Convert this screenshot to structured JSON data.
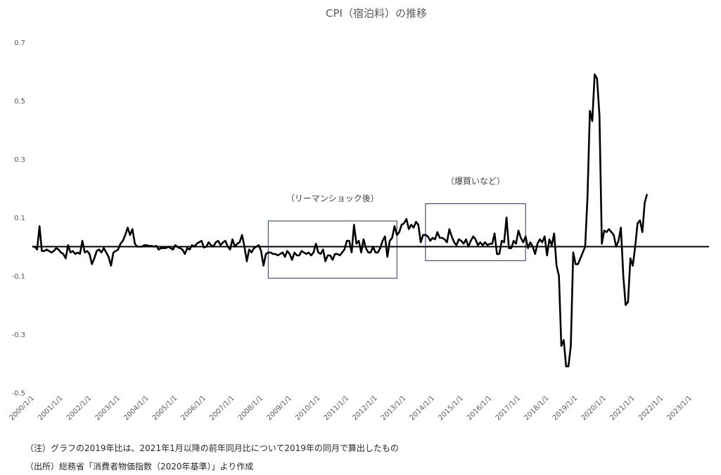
{
  "chart_data": {
    "type": "line",
    "title": "CPI（宿泊料）の推移",
    "xlabel": "",
    "ylabel": "",
    "ylim": [
      -0.5,
      0.7
    ],
    "yticks": [
      -0.5,
      -0.3,
      -0.1,
      0.1,
      0.3,
      0.5,
      0.7
    ],
    "xticks": [
      "2000/1/1",
      "2001/1/1",
      "2002/1/1",
      "2003/1/1",
      "2004/1/1",
      "2005/1/1",
      "2006/1/1",
      "2007/1/1",
      "2008/1/1",
      "2009/1/1",
      "2010/1/1",
      "2011/1/1",
      "2012/1/1",
      "2013/1/1",
      "2014/1/1",
      "2015/1/1",
      "2016/1/1",
      "2017/1/1",
      "2018/1/1",
      "2019/1/1",
      "2020/1/1",
      "2021/1/1",
      "2022/1/1",
      "2023/1/1"
    ],
    "xlim": [
      "2000/1/1",
      "2023/9/1"
    ],
    "grid": false,
    "baseline": 0,
    "series": [
      {
        "x_start": "2000/1/1",
        "frequency": "monthly",
        "values": [
          0.0,
          0.0,
          -0.01,
          0.07,
          -0.015,
          -0.015,
          -0.01,
          -0.015,
          -0.02,
          -0.015,
          -0.005,
          -0.01,
          -0.02,
          -0.025,
          -0.04,
          0.005,
          -0.02,
          -0.015,
          -0.025,
          -0.02,
          -0.025,
          0.02,
          -0.02,
          -0.015,
          -0.025,
          -0.06,
          -0.04,
          -0.015,
          -0.01,
          -0.02,
          -0.005,
          -0.02,
          -0.035,
          -0.065,
          -0.02,
          -0.015,
          -0.01,
          0.01,
          0.02,
          0.04,
          0.065,
          0.04,
          0.06,
          0.01,
          0.0,
          0.0,
          0.0,
          0.005,
          0.005,
          0.002,
          0.003,
          0.0,
          0.003,
          -0.01,
          -0.005,
          -0.005,
          -0.005,
          0.0,
          -0.005,
          -0.01,
          0.005,
          -0.002,
          -0.005,
          -0.01,
          -0.025,
          -0.005,
          -0.01,
          0.005,
          0.0,
          0.01,
          0.015,
          0.02,
          -0.003,
          0.0,
          0.015,
          0.005,
          0.0,
          0.015,
          0.02,
          0.005,
          0.015,
          0.02,
          0.0,
          -0.01,
          0.025,
          0.0,
          0.01,
          0.015,
          0.04,
          0.0,
          -0.05,
          -0.01,
          -0.02,
          -0.005,
          0.0,
          0.005,
          -0.015,
          -0.065,
          -0.025,
          -0.02,
          -0.02,
          -0.025,
          -0.025,
          -0.03,
          -0.025,
          -0.02,
          -0.035,
          -0.015,
          -0.025,
          -0.045,
          -0.02,
          -0.03,
          -0.03,
          -0.015,
          -0.02,
          -0.025,
          -0.02,
          -0.03,
          -0.02,
          0.01,
          -0.02,
          -0.025,
          -0.01,
          -0.05,
          -0.03,
          -0.03,
          -0.045,
          -0.025,
          -0.025,
          -0.03,
          -0.02,
          -0.01,
          0.02,
          0.02,
          -0.02,
          0.075,
          0.01,
          0.02,
          -0.02,
          0.025,
          -0.005,
          -0.02,
          -0.02,
          0.0,
          -0.02,
          -0.02,
          -0.005,
          0.02,
          0.035,
          -0.035,
          0.02,
          0.03,
          0.07,
          0.04,
          0.05,
          0.075,
          0.08,
          0.095,
          0.06,
          0.075,
          0.065,
          0.085,
          0.075,
          0.015,
          0.04,
          0.04,
          0.035,
          0.02,
          0.03,
          0.025,
          0.05,
          0.03,
          0.03,
          0.025,
          0.015,
          0.06,
          0.035,
          0.015,
          0.005,
          0.025,
          0.02,
          0.01,
          0.025,
          0.0,
          0.02,
          0.035,
          0.025,
          0.005,
          0.015,
          0.005,
          0.015,
          0.005,
          0.01,
          0.01,
          0.045,
          -0.025,
          -0.025,
          0.02,
          0.015,
          0.1,
          -0.005,
          -0.005,
          0.02,
          0.01,
          0.055,
          0.03,
          0.015,
          0.035,
          -0.005,
          0.015,
          0.0,
          -0.025,
          0.01,
          0.025,
          0.015,
          0.035,
          -0.03,
          0.025,
          0.005,
          0.045,
          -0.065,
          -0.1,
          -0.34,
          -0.32,
          -0.41,
          -0.41,
          -0.34,
          -0.02,
          -0.06,
          -0.06,
          -0.04,
          -0.02,
          0.0,
          0.17,
          0.465,
          0.43,
          0.59,
          0.575,
          0.45,
          0.01,
          0.055,
          0.05,
          0.06,
          0.05,
          0.04,
          0.0,
          0.02,
          0.065,
          -0.1,
          -0.2,
          -0.19,
          -0.04,
          -0.065,
          0.0,
          0.08,
          0.09,
          0.05,
          0.15,
          0.18
        ]
      }
    ],
    "annotations": [
      {
        "label": "（リーマンショック後）",
        "x0": "2008/4/1",
        "x1": "2012/10/1",
        "y0": -0.108,
        "y1": 0.088
      },
      {
        "label": "（爆買いなど）",
        "x0": "2013/10/1",
        "x1": "2017/4/1",
        "y0": -0.048,
        "y1": 0.147
      }
    ]
  },
  "notes": {
    "note1": "（注）グラフの2019年比は、2021年1月以降の前年同月比について2019年の同月で算出したもの",
    "note2": "（出所）総務省「消費者物価指数（2020年基準）」より作成"
  }
}
